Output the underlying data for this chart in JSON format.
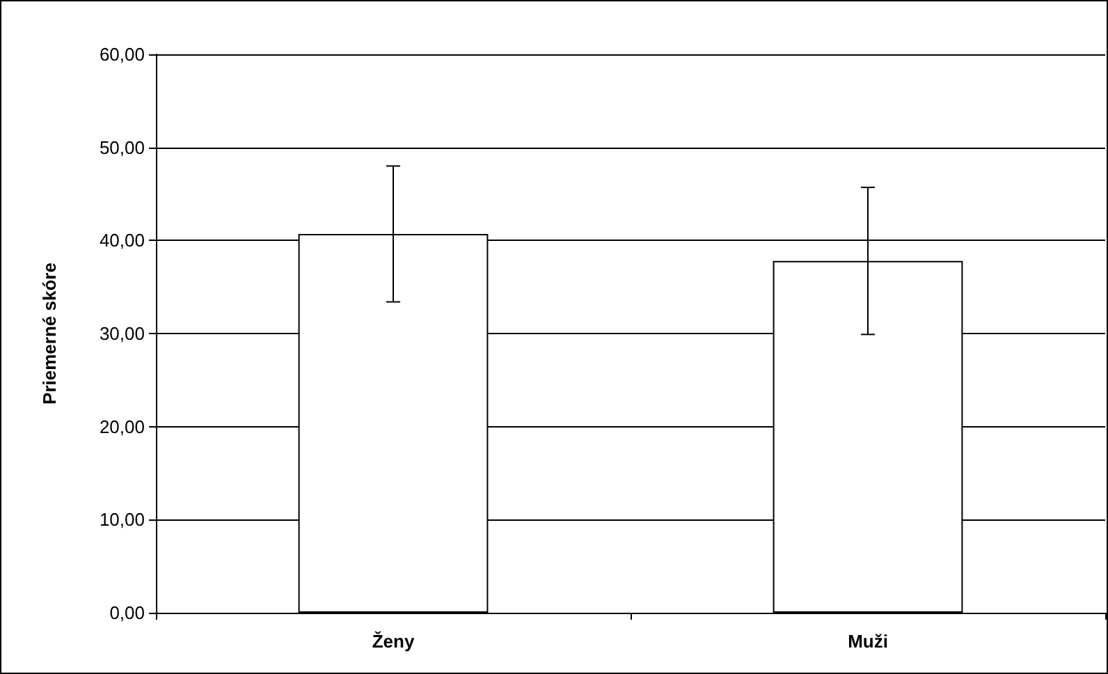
{
  "chart_data": {
    "type": "bar",
    "ylabel": "Priemerné skóre",
    "categories": [
      "Ženy",
      "Muži"
    ],
    "series": [
      {
        "color": "#ffffff",
        "values": [
          40.7,
          37.8
        ],
        "errors": [
          7.3,
          7.9
        ]
      }
    ],
    "ylim": [
      0,
      60
    ],
    "yticks": [
      {
        "value": 0,
        "label": "0,00"
      },
      {
        "value": 10,
        "label": "10,00"
      },
      {
        "value": 20,
        "label": "20,00"
      },
      {
        "value": 30,
        "label": "30,00"
      },
      {
        "value": 40,
        "label": "40,00"
      },
      {
        "value": 50,
        "label": "50,00"
      },
      {
        "value": 60,
        "label": "60,00"
      }
    ],
    "grid": "y"
  }
}
